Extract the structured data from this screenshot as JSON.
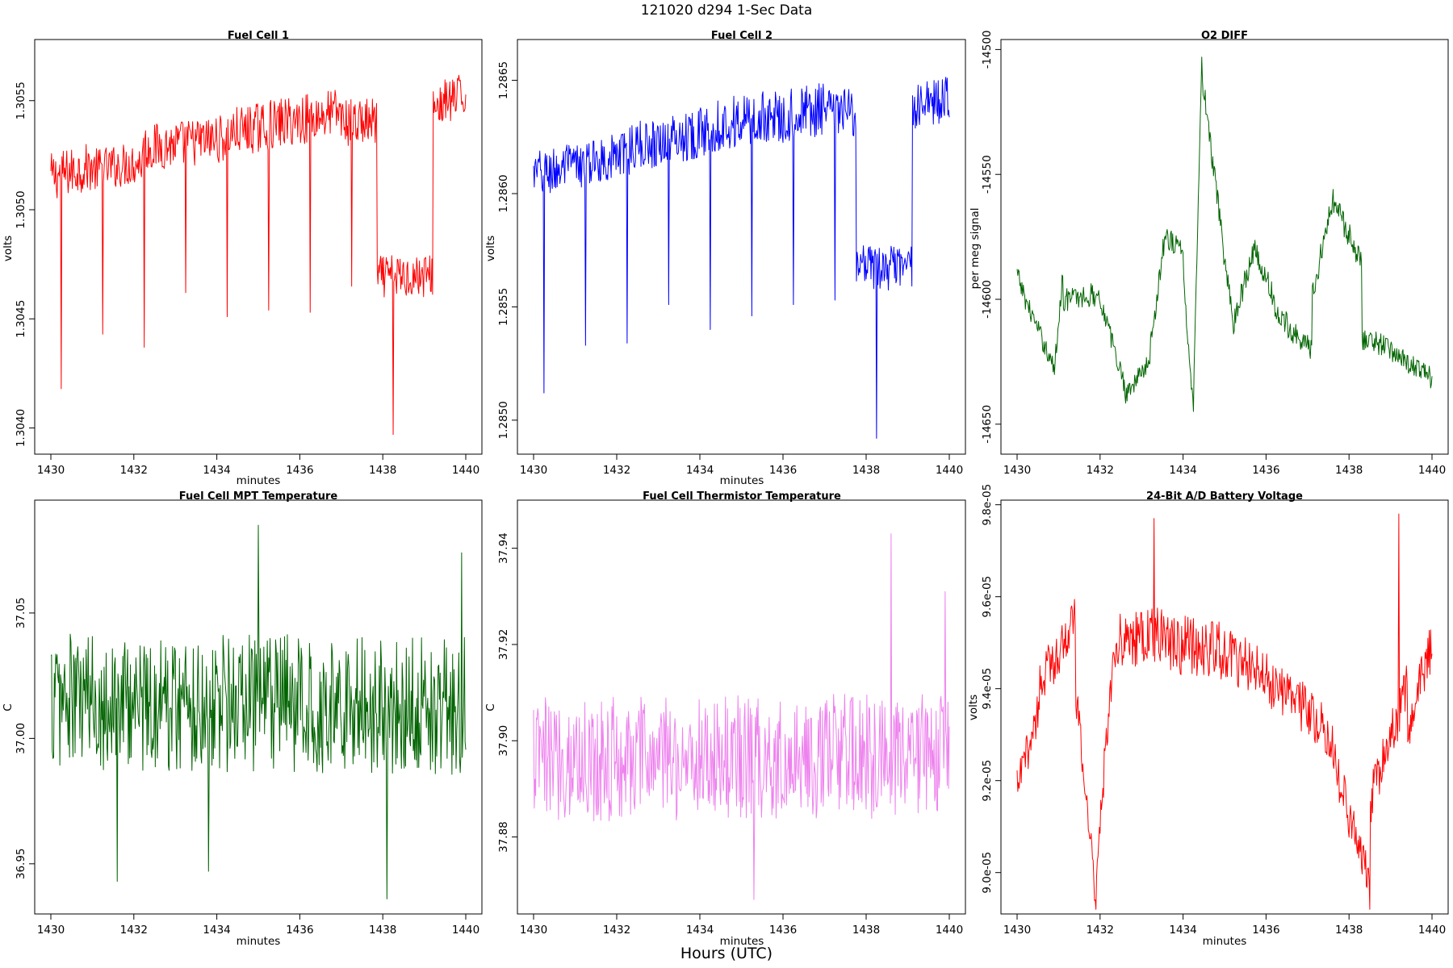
{
  "figure": {
    "title": "121020   d294   1-Sec Data",
    "bottom_label": "Hours (UTC)"
  },
  "chart_data": [
    {
      "type": "line",
      "title": "Fuel Cell 1",
      "xlabel": "minutes",
      "ylabel": "volts",
      "xlim": [
        1430,
        1440
      ],
      "ylim": [
        1.30388,
        1.30578
      ],
      "xticks": [
        1430,
        1432,
        1434,
        1436,
        1438,
        1440
      ],
      "yticks": [
        1.304,
        1.3045,
        1.305,
        1.3055
      ],
      "ytick_labels": [
        "1.3040",
        "1.3045",
        "1.3050",
        "1.3055"
      ],
      "grid": false,
      "color": "#ff0000",
      "series": [
        {
          "x_range": [
            1430,
            1440
          ],
          "segments": [
            {
              "x0": 1430.0,
              "x1": 1431.0,
              "y0": 1.30515,
              "y1": 1.3052,
              "amp": 0.00022
            },
            {
              "x0": 1431.0,
              "x1": 1432.2,
              "y0": 1.30518,
              "y1": 1.30522,
              "amp": 0.0002
            },
            {
              "x0": 1432.2,
              "x1": 1434.3,
              "y0": 1.30528,
              "y1": 1.30533,
              "amp": 0.00022
            },
            {
              "x0": 1434.3,
              "x1": 1437.0,
              "y0": 1.30535,
              "y1": 1.30545,
              "amp": 0.00023
            },
            {
              "x0": 1437.0,
              "x1": 1437.85,
              "y0": 1.3054,
              "y1": 1.3054,
              "amp": 0.00022
            },
            {
              "x0": 1437.85,
              "x1": 1439.2,
              "y0": 1.30469,
              "y1": 1.3047,
              "amp": 0.0002
            },
            {
              "x0": 1439.2,
              "x1": 1440.0,
              "y0": 1.30547,
              "y1": 1.30552,
              "amp": 0.00022
            }
          ],
          "spikes": [
            {
              "x": 1430.25,
              "y": 1.30418
            },
            {
              "x": 1431.25,
              "y": 1.30443
            },
            {
              "x": 1432.25,
              "y": 1.30437
            },
            {
              "x": 1433.25,
              "y": 1.30462
            },
            {
              "x": 1434.25,
              "y": 1.30451
            },
            {
              "x": 1435.25,
              "y": 1.30454
            },
            {
              "x": 1436.25,
              "y": 1.30453
            },
            {
              "x": 1437.25,
              "y": 1.30465
            },
            {
              "x": 1438.25,
              "y": 1.30397
            }
          ]
        }
      ]
    },
    {
      "type": "line",
      "title": "Fuel Cell 2",
      "xlabel": "minutes",
      "ylabel": "volts",
      "xlim": [
        1430,
        1440
      ],
      "ylim": [
        1.28485,
        1.28668
      ],
      "xticks": [
        1430,
        1432,
        1434,
        1436,
        1438,
        1440
      ],
      "yticks": [
        1.285,
        1.2855,
        1.286,
        1.2865
      ],
      "ytick_labels": [
        "1.2850",
        "1.2855",
        "1.2860",
        "1.2865"
      ],
      "grid": false,
      "color": "#0000ff",
      "series": [
        {
          "x_range": [
            1430,
            1440
          ],
          "segments": [
            {
              "x0": 1430.0,
              "x1": 1431.0,
              "y0": 1.28608,
              "y1": 1.28612,
              "amp": 0.00022
            },
            {
              "x0": 1431.0,
              "x1": 1432.3,
              "y0": 1.28612,
              "y1": 1.28618,
              "amp": 0.0002
            },
            {
              "x0": 1432.3,
              "x1": 1434.3,
              "y0": 1.2862,
              "y1": 1.28628,
              "amp": 0.00022
            },
            {
              "x0": 1434.3,
              "x1": 1437.0,
              "y0": 1.2863,
              "y1": 1.28637,
              "amp": 0.00024
            },
            {
              "x0": 1437.0,
              "x1": 1437.75,
              "y0": 1.28636,
              "y1": 1.28636,
              "amp": 0.00022
            },
            {
              "x0": 1437.75,
              "x1": 1439.1,
              "y0": 1.28567,
              "y1": 1.28567,
              "amp": 0.0002
            },
            {
              "x0": 1439.1,
              "x1": 1440.0,
              "y0": 1.28638,
              "y1": 1.28642,
              "amp": 0.0002
            }
          ],
          "spikes": [
            {
              "x": 1430.25,
              "y": 1.28512
            },
            {
              "x": 1431.25,
              "y": 1.28533
            },
            {
              "x": 1432.25,
              "y": 1.28534
            },
            {
              "x": 1433.25,
              "y": 1.28551
            },
            {
              "x": 1434.25,
              "y": 1.2854
            },
            {
              "x": 1435.25,
              "y": 1.28546
            },
            {
              "x": 1436.25,
              "y": 1.28551
            },
            {
              "x": 1437.25,
              "y": 1.28553
            },
            {
              "x": 1438.25,
              "y": 1.28492
            }
          ]
        }
      ]
    },
    {
      "type": "line",
      "title": "O2 DIFF",
      "xlabel": "",
      "ylabel": "per meg signal",
      "xlim": [
        1430,
        1440
      ],
      "ylim": [
        -14662,
        -14496
      ],
      "xticks": [
        1430,
        1432,
        1434,
        1436,
        1438,
        1440
      ],
      "yticks": [
        -14650,
        -14600,
        -14550,
        -14500
      ],
      "ytick_labels": [
        "-14650",
        "-14600",
        "-14550",
        "-14500"
      ],
      "grid": false,
      "color": "#006400",
      "series": [
        {
          "x_range": [
            1430,
            1440
          ],
          "segments": [
            {
              "x0": 1430.0,
              "x1": 1430.2,
              "y0": -14590,
              "y1": -14600,
              "amp": 8
            },
            {
              "x0": 1430.2,
              "x1": 1430.9,
              "y0": -14600,
              "y1": -14628,
              "amp": 8
            },
            {
              "x0": 1430.9,
              "x1": 1431.1,
              "y0": -14628,
              "y1": -14590,
              "amp": 8
            },
            {
              "x0": 1431.1,
              "x1": 1432.0,
              "y0": -14600,
              "y1": -14598,
              "amp": 10
            },
            {
              "x0": 1432.0,
              "x1": 1432.6,
              "y0": -14600,
              "y1": -14635,
              "amp": 8
            },
            {
              "x0": 1432.6,
              "x1": 1433.2,
              "y0": -14638,
              "y1": -14625,
              "amp": 8
            },
            {
              "x0": 1433.2,
              "x1": 1433.6,
              "y0": -14620,
              "y1": -14570,
              "amp": 10
            },
            {
              "x0": 1433.6,
              "x1": 1434.0,
              "y0": -14575,
              "y1": -14580,
              "amp": 10
            },
            {
              "x0": 1434.0,
              "x1": 1434.25,
              "y0": -14590,
              "y1": -14645,
              "amp": 6
            },
            {
              "x0": 1434.25,
              "x1": 1434.45,
              "y0": -14640,
              "y1": -14505,
              "amp": 6
            },
            {
              "x0": 1434.45,
              "x1": 1435.2,
              "y0": -14510,
              "y1": -14610,
              "amp": 10
            },
            {
              "x0": 1435.2,
              "x1": 1435.7,
              "y0": -14610,
              "y1": -14580,
              "amp": 10
            },
            {
              "x0": 1435.7,
              "x1": 1436.2,
              "y0": -14580,
              "y1": -14600,
              "amp": 10
            },
            {
              "x0": 1436.2,
              "x1": 1437.1,
              "y0": -14605,
              "y1": -14620,
              "amp": 10
            },
            {
              "x0": 1437.1,
              "x1": 1437.6,
              "y0": -14600,
              "y1": -14560,
              "amp": 10
            },
            {
              "x0": 1437.6,
              "x1": 1438.3,
              "y0": -14560,
              "y1": -14585,
              "amp": 10
            },
            {
              "x0": 1438.3,
              "x1": 1439.0,
              "y0": -14615,
              "y1": -14620,
              "amp": 10
            },
            {
              "x0": 1439.0,
              "x1": 1440.0,
              "y0": -14620,
              "y1": -14632,
              "amp": 9
            }
          ],
          "spikes": []
        }
      ]
    },
    {
      "type": "line",
      "title": "Fuel Cell MPT Temperature",
      "xlabel": "minutes",
      "ylabel": "C",
      "xlim": [
        1430,
        1440
      ],
      "ylim": [
        36.93,
        37.095
      ],
      "xticks": [
        1430,
        1432,
        1434,
        1436,
        1438,
        1440
      ],
      "yticks": [
        36.95,
        37.0,
        37.05
      ],
      "ytick_labels": [
        "36.95",
        "37.00",
        "37.05"
      ],
      "grid": false,
      "color": "#006400",
      "series": [
        {
          "x_range": [
            1430,
            1440
          ],
          "segments": [
            {
              "x0": 1430.0,
              "x1": 1440.0,
              "y0": 37.015,
              "y1": 37.013,
              "amp": 0.055
            }
          ],
          "spikes": [
            {
              "x": 1431.6,
              "y": 36.943
            },
            {
              "x": 1433.8,
              "y": 36.947
            },
            {
              "x": 1435.0,
              "y": 37.085
            },
            {
              "x": 1438.1,
              "y": 36.936
            },
            {
              "x": 1439.9,
              "y": 37.074
            }
          ]
        }
      ]
    },
    {
      "type": "line",
      "title": "Fuel Cell Thermistor Temperature",
      "xlabel": "minutes",
      "ylabel": "C",
      "xlim": [
        1430,
        1440
      ],
      "ylim": [
        37.864,
        37.95
      ],
      "xticks": [
        1430,
        1432,
        1434,
        1436,
        1438,
        1440
      ],
      "yticks": [
        37.88,
        37.9,
        37.92,
        37.94
      ],
      "ytick_labels": [
        "37.88",
        "37.90",
        "37.92",
        "37.94"
      ],
      "grid": false,
      "color": "#ee82ee",
      "series": [
        {
          "x_range": [
            1430,
            1440
          ],
          "segments": [
            {
              "x0": 1430.0,
              "x1": 1440.0,
              "y0": 37.896,
              "y1": 37.897,
              "amp": 0.026
            }
          ],
          "spikes": [
            {
              "x": 1435.3,
              "y": 37.867
            },
            {
              "x": 1438.6,
              "y": 37.943
            },
            {
              "x": 1439.9,
              "y": 37.931
            }
          ]
        }
      ]
    },
    {
      "type": "line",
      "title": "24-Bit A/D Battery Voltage",
      "xlabel": "minutes",
      "ylabel": "volts",
      "xlim": [
        1430,
        1440
      ],
      "ylim": [
        8.91e-05,
        9.81e-05
      ],
      "xticks": [
        1430,
        1432,
        1434,
        1436,
        1438,
        1440
      ],
      "yticks": [
        9e-05,
        9.2e-05,
        9.4e-05,
        9.6e-05,
        9.8e-05
      ],
      "ytick_labels": [
        "9.0e-05",
        "9.2e-05",
        "9.4e-05",
        "9.6e-05",
        "9.8e-05"
      ],
      "grid": false,
      "color": "#ff0000",
      "series": [
        {
          "x_range": [
            1430,
            1440
          ],
          "segments": [
            {
              "x0": 1430.0,
              "x1": 1430.5,
              "y0": 9.18e-05,
              "y1": 9.35e-05,
              "amp": 9e-07
            },
            {
              "x0": 1430.5,
              "x1": 1431.4,
              "y0": 9.4e-05,
              "y1": 9.55e-05,
              "amp": 1.1e-06
            },
            {
              "x0": 1431.4,
              "x1": 1431.9,
              "y0": 9.4e-05,
              "y1": 8.95e-05,
              "amp": 9e-07
            },
            {
              "x0": 1431.9,
              "x1": 1432.3,
              "y0": 9e-05,
              "y1": 9.45e-05,
              "amp": 9e-07
            },
            {
              "x0": 1432.3,
              "x1": 1433.6,
              "y0": 9.5e-05,
              "y1": 9.52e-05,
              "amp": 1.2e-06
            },
            {
              "x0": 1433.6,
              "x1": 1435.0,
              "y0": 9.5e-05,
              "y1": 9.48e-05,
              "amp": 1.3e-06
            },
            {
              "x0": 1435.0,
              "x1": 1436.4,
              "y0": 9.48e-05,
              "y1": 9.4e-05,
              "amp": 1.2e-06
            },
            {
              "x0": 1436.4,
              "x1": 1437.6,
              "y0": 9.4e-05,
              "y1": 9.3e-05,
              "amp": 1.1e-06
            },
            {
              "x0": 1437.6,
              "x1": 1438.5,
              "y0": 9.25e-05,
              "y1": 8.97e-05,
              "amp": 1e-06
            },
            {
              "x0": 1438.5,
              "x1": 1439.4,
              "y0": 9.15e-05,
              "y1": 9.4e-05,
              "amp": 1.1e-06
            },
            {
              "x0": 1439.4,
              "x1": 1440.0,
              "y0": 9.3e-05,
              "y1": 9.5e-05,
              "amp": 1.1e-06
            }
          ],
          "spikes": [
            {
              "x": 1431.9,
              "y": 8.92e-05
            },
            {
              "x": 1433.3,
              "y": 9.77e-05
            },
            {
              "x": 1438.5,
              "y": 8.92e-05
            },
            {
              "x": 1439.2,
              "y": 9.78e-05
            }
          ]
        }
      ]
    }
  ]
}
